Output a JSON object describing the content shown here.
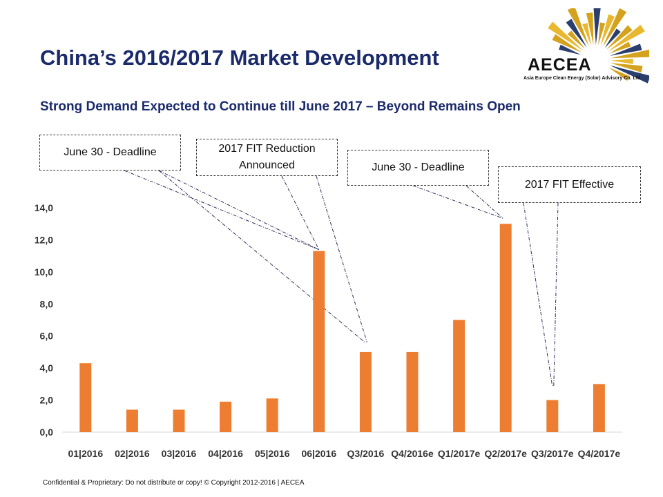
{
  "title": "China’s 2016/2017 Market Development",
  "subtitle": "Strong Demand Expected to Continue till June 2017 – Beyond Remains Open",
  "logo": {
    "name": "AECEA",
    "subtext": "Asia Europe Clean Energy (Solar) Advisory Co. Ltd."
  },
  "footer": "Confidential & Proprietary: Do not distribute or copy! © Copyright 2012-2016 | AECEA",
  "callouts": [
    {
      "text": "June 30 - Deadline"
    },
    {
      "text": "2017 FIT Reduction Announced"
    },
    {
      "text": "June 30 - Deadline"
    },
    {
      "text": "2017 FIT Effective"
    }
  ],
  "colors": {
    "bar": "#ed7d31",
    "title": "#1b2a6b"
  },
  "chart_data": {
    "type": "bar",
    "categories": [
      "01|2016",
      "02|2016",
      "03|2016",
      "04|2016",
      "05|2016",
      "06|2016",
      "Q3/2016",
      "Q4/2016e",
      "Q1/2017e",
      "Q2/2017e",
      "Q3/2017e",
      "Q4/2017e"
    ],
    "values": [
      4.3,
      1.4,
      1.4,
      1.9,
      2.1,
      11.3,
      5.0,
      5.0,
      7.0,
      13.0,
      2.0,
      3.0
    ],
    "yticks": [
      "0,0",
      "2,0",
      "4,0",
      "6,0",
      "8,0",
      "10,0",
      "12,0",
      "14,0"
    ],
    "ylim": [
      0,
      14
    ],
    "grid": false,
    "legend": "none"
  }
}
